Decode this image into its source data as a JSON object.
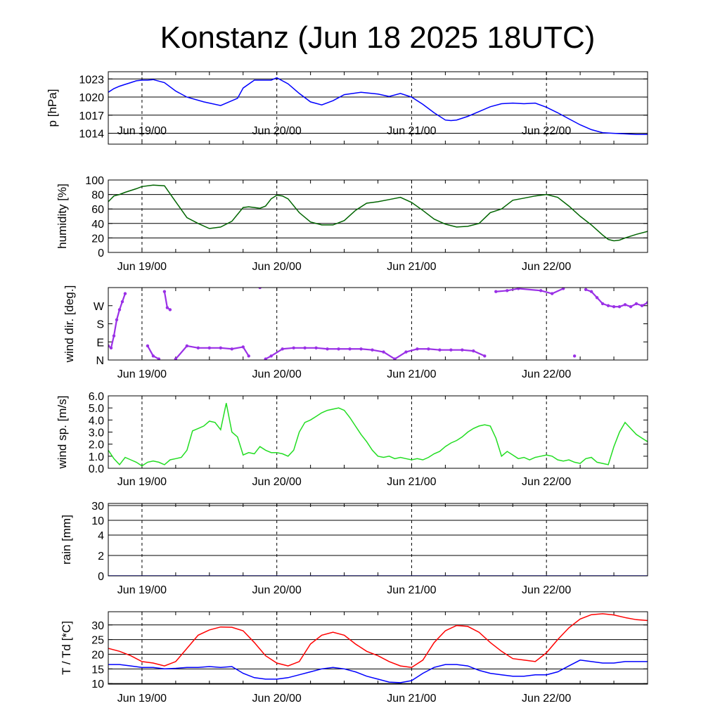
{
  "title": "Konstanz (Jun 18 2025 18UTC)",
  "x_ticks": [
    "Jun 19/00",
    "Jun 20/00",
    "Jun 21/00",
    "Jun 22/00"
  ],
  "chart_data": [
    {
      "type": "line",
      "ylabel": "p [hPa]",
      "ylim": [
        1012.2,
        1024.2
      ],
      "yticks": [
        1014,
        1017,
        1020,
        1023
      ],
      "ytick_labels": [
        "1014",
        "1017",
        "1020",
        "1023"
      ],
      "gridlines": [
        1014,
        1017,
        1020,
        1023
      ],
      "xlim_hours": [
        0,
        96
      ],
      "x_unit": "hours after Jun 18 18UTC",
      "series": [
        {
          "color": "#0000ff",
          "x": [
            0,
            1,
            2,
            3,
            4,
            5,
            6,
            7,
            8,
            10,
            12,
            14,
            17,
            20,
            23,
            24,
            26,
            28,
            29,
            30,
            32,
            34,
            36,
            38,
            40,
            42,
            45,
            48,
            50,
            52,
            54,
            56,
            58,
            60,
            61,
            62,
            64,
            66,
            68,
            70,
            72,
            74,
            76,
            78,
            80,
            82,
            84,
            86,
            88,
            90,
            92,
            94,
            96
          ],
          "values": [
            1020.8,
            1021.4,
            1021.8,
            1022.1,
            1022.4,
            1022.7,
            1022.8,
            1022.8,
            1022.9,
            1022.4,
            1021.0,
            1020.0,
            1019.2,
            1018.6,
            1019.8,
            1021.5,
            1022.8,
            1022.8,
            1022.8,
            1023.2,
            1022.2,
            1020.6,
            1019.2,
            1018.7,
            1019.4,
            1020.4,
            1020.8,
            1020.5,
            1020.1,
            1020.6,
            1020.0,
            1018.8,
            1017.4,
            1016.2,
            1016.1,
            1016.2,
            1016.8,
            1017.6,
            1018.4,
            1018.9,
            1019.0,
            1018.9,
            1019.0,
            1018.3,
            1017.4,
            1016.4,
            1015.4,
            1014.6,
            1014.1,
            1014.0,
            1013.9,
            1013.8,
            1013.8
          ]
        }
      ]
    },
    {
      "type": "line",
      "ylabel": "humidity [%]",
      "ylim": [
        0,
        100
      ],
      "yticks": [
        0,
        20,
        40,
        60,
        80,
        100
      ],
      "ytick_labels": [
        "0",
        "20",
        "40",
        "60",
        "80",
        "100"
      ],
      "gridlines": [
        20,
        40,
        60,
        80,
        100
      ],
      "xlim_hours": [
        0,
        96
      ],
      "series": [
        {
          "color": "#006400",
          "x": [
            0,
            1,
            2,
            3,
            5,
            6,
            8,
            10,
            12,
            14,
            16,
            18,
            20,
            22,
            24,
            25,
            26,
            27,
            28,
            29,
            30,
            31,
            32,
            34,
            36,
            38,
            40,
            42,
            44,
            46,
            48,
            50,
            52,
            54,
            56,
            58,
            60,
            62,
            64,
            66,
            68,
            70,
            72,
            74,
            76,
            78,
            80,
            82,
            84,
            86,
            88,
            89,
            90,
            91,
            92,
            94,
            96
          ],
          "values": [
            70,
            78,
            80,
            83,
            88,
            91,
            93,
            92,
            70,
            48,
            40,
            33,
            35,
            43,
            62,
            63,
            62,
            61,
            64,
            74,
            79,
            78,
            74,
            55,
            42,
            38,
            38,
            44,
            58,
            68,
            70,
            73,
            76,
            69,
            58,
            46,
            39,
            35,
            36,
            40,
            55,
            60,
            72,
            75,
            78,
            80,
            76,
            64,
            50,
            38,
            24,
            18,
            16,
            17,
            20,
            25,
            29
          ]
        }
      ]
    },
    {
      "type": "scatter",
      "ylabel": "wind dir. [deg.]",
      "ylim": [
        0,
        360
      ],
      "yticks": [
        0,
        90,
        180,
        270
      ],
      "ytick_labels": [
        "N",
        "E",
        "S",
        "W"
      ],
      "gridlines": [],
      "xlim_hours": [
        0,
        96
      ],
      "series": [
        {
          "color": "#9a30e6",
          "x": [
            0,
            0.5,
            1,
            1.5,
            2,
            2.5,
            3,
            7,
            8,
            9,
            10,
            10.5,
            11,
            12,
            14,
            16,
            18,
            20,
            22,
            24,
            25,
            27,
            28,
            29,
            31,
            33,
            35,
            37,
            39,
            41,
            43,
            45,
            47,
            49,
            51,
            53,
            55,
            57,
            59,
            61,
            63,
            65,
            67,
            69,
            71,
            73,
            77,
            79,
            81,
            83,
            85,
            86,
            87,
            88,
            89,
            90,
            91,
            92,
            93,
            94,
            95,
            96
          ],
          "values": [
            70,
            60,
            120,
            200,
            250,
            290,
            330,
            70,
            20,
            5,
            340,
            260,
            250,
            5,
            70,
            60,
            60,
            60,
            55,
            65,
            20,
            360,
            5,
            20,
            55,
            60,
            60,
            60,
            55,
            55,
            55,
            55,
            50,
            40,
            5,
            40,
            55,
            55,
            50,
            50,
            50,
            45,
            20,
            340,
            345,
            355,
            345,
            330,
            355,
            20,
            350,
            340,
            310,
            280,
            270,
            265,
            265,
            275,
            265,
            280,
            270,
            285
          ]
        }
      ]
    },
    {
      "type": "line",
      "ylabel": "wind sp. [m/s]",
      "ylim": [
        0,
        6
      ],
      "yticks": [
        0,
        1,
        2,
        3,
        4,
        5,
        6
      ],
      "ytick_labels": [
        "0.0",
        "1.0",
        "2.0",
        "3.0",
        "4.0",
        "5.0",
        "6.0"
      ],
      "gridlines": [],
      "xlim_hours": [
        0,
        96
      ],
      "series": [
        {
          "color": "#22dd22",
          "x": [
            0,
            1,
            2,
            3,
            4,
            5,
            6,
            7,
            8,
            9,
            10,
            11,
            12,
            13,
            14,
            15,
            16,
            17,
            18,
            19,
            20,
            21,
            22,
            23,
            24,
            25,
            26,
            27,
            28,
            29,
            30,
            31,
            32,
            33,
            34,
            35,
            36,
            37,
            38,
            39,
            40,
            41,
            42,
            43,
            44,
            45,
            46,
            47,
            48,
            49,
            50,
            51,
            52,
            53,
            54,
            55,
            56,
            57,
            58,
            59,
            60,
            61,
            62,
            63,
            64,
            65,
            66,
            67,
            68,
            69,
            70,
            71,
            72,
            73,
            74,
            75,
            76,
            77,
            78,
            79,
            80,
            81,
            82,
            83,
            84,
            85,
            86,
            87,
            88,
            89,
            90,
            91,
            92,
            93,
            94,
            95,
            96
          ],
          "values": [
            1.5,
            0.8,
            0.3,
            0.9,
            0.7,
            0.5,
            0.2,
            0.5,
            0.6,
            0.5,
            0.3,
            0.7,
            0.8,
            0.9,
            1.5,
            3.1,
            3.3,
            3.5,
            3.9,
            3.8,
            3.2,
            5.4,
            3.0,
            2.6,
            1.1,
            1.3,
            1.2,
            1.8,
            1.5,
            1.3,
            1.3,
            1.2,
            1.0,
            1.5,
            3.0,
            3.8,
            4.0,
            4.3,
            4.6,
            4.8,
            4.9,
            5.0,
            4.8,
            4.2,
            3.5,
            2.8,
            2.2,
            1.5,
            1.0,
            0.9,
            1.0,
            0.8,
            0.9,
            0.8,
            0.7,
            0.8,
            0.7,
            0.9,
            1.2,
            1.4,
            1.8,
            2.1,
            2.3,
            2.6,
            3.0,
            3.3,
            3.5,
            3.6,
            3.5,
            2.5,
            1.0,
            1.4,
            1.1,
            0.8,
            0.9,
            0.7,
            0.9,
            1.0,
            1.1,
            1.0,
            0.7,
            0.6,
            0.7,
            0.5,
            0.4,
            0.8,
            0.9,
            0.5,
            0.4,
            0.3,
            1.8,
            3.0,
            3.8,
            3.3,
            2.8,
            2.5,
            2.2
          ]
        }
      ]
    },
    {
      "type": "line",
      "ylabel": "rain [mm]",
      "y_scale": "nonlinear",
      "ytick_values": [
        0,
        2,
        4,
        10,
        30
      ],
      "ytick_labels": [
        "0",
        "2",
        "4",
        "10",
        "30"
      ],
      "gridlines": [
        2,
        4,
        10,
        30
      ],
      "xlim_hours": [
        0,
        96
      ],
      "series": [
        {
          "color": "#0000ff",
          "x": [
            0,
            96
          ],
          "values": [
            0,
            0
          ]
        }
      ]
    },
    {
      "type": "line",
      "ylabel": "T / Td [*C]",
      "ylim": [
        9.8,
        34.5
      ],
      "yticks": [
        10,
        15,
        20,
        25,
        30
      ],
      "ytick_labels": [
        "10",
        "15",
        "20",
        "25",
        "30"
      ],
      "gridlines": [
        10,
        15,
        20,
        25,
        30
      ],
      "xlim_hours": [
        0,
        96
      ],
      "series": [
        {
          "color": "#ff0000",
          "x": [
            0,
            2,
            4,
            6,
            8,
            10,
            12,
            14,
            16,
            18,
            20,
            22,
            24,
            26,
            28,
            30,
            32,
            34,
            36,
            38,
            40,
            42,
            44,
            46,
            48,
            50,
            52,
            54,
            56,
            58,
            60,
            62,
            64,
            66,
            68,
            70,
            72,
            74,
            76,
            78,
            80,
            82,
            84,
            86,
            88,
            90,
            92,
            94,
            96
          ],
          "values": [
            22,
            21,
            19.5,
            17.5,
            17,
            16,
            17.5,
            22,
            26.5,
            28.3,
            29.3,
            29.2,
            28,
            24,
            19.5,
            17,
            16,
            17.5,
            23.5,
            26.5,
            27.5,
            26.5,
            23.5,
            21,
            19.5,
            17.5,
            16,
            15.5,
            18,
            24,
            28,
            29.8,
            29.5,
            27.5,
            24,
            21,
            18.5,
            18,
            17.5,
            20.5,
            25,
            29,
            32,
            33.5,
            33.8,
            33.4,
            32.5,
            31.8,
            31.5
          ]
        },
        {
          "color": "#0000ff",
          "x": [
            0,
            2,
            4,
            6,
            8,
            10,
            12,
            14,
            16,
            18,
            20,
            22,
            24,
            26,
            28,
            30,
            32,
            34,
            36,
            38,
            40,
            42,
            44,
            46,
            48,
            50,
            52,
            54,
            56,
            58,
            60,
            62,
            64,
            66,
            68,
            70,
            72,
            74,
            76,
            78,
            80,
            82,
            84,
            86,
            88,
            90,
            92,
            94,
            96
          ],
          "values": [
            16.5,
            16.5,
            16,
            15.5,
            15.5,
            15,
            15.2,
            15.5,
            15.5,
            15.8,
            15.5,
            15.8,
            13.5,
            12,
            11.5,
            11.5,
            12,
            13,
            14,
            15,
            15.5,
            15,
            14,
            12.5,
            11.5,
            10.5,
            10.3,
            11,
            13.5,
            15.5,
            16.5,
            16.5,
            16,
            14.5,
            13.5,
            13,
            12.5,
            12.5,
            13,
            13,
            14,
            16,
            18,
            17.5,
            17,
            17,
            17.5,
            17.5,
            17.5
          ]
        }
      ]
    }
  ]
}
